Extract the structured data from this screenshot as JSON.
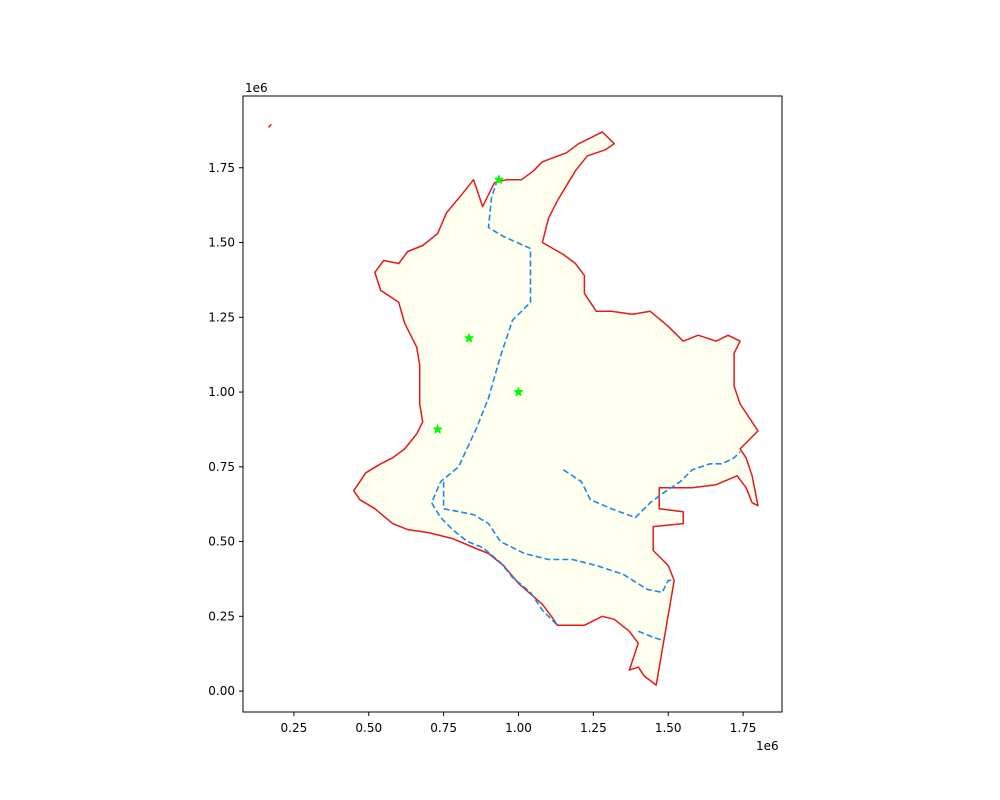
{
  "chart_data": {
    "type": "map",
    "title": "",
    "xlabel": "",
    "ylabel": "",
    "xlim": [
      0.08,
      1.88
    ],
    "ylim": [
      -0.07,
      1.99
    ],
    "x_offset_label": "1e6",
    "y_offset_label": "1e6",
    "x_ticks": [
      {
        "value": 0.25,
        "label": "0.25"
      },
      {
        "value": 0.5,
        "label": "0.50"
      },
      {
        "value": 0.75,
        "label": "0.75"
      },
      {
        "value": 1.0,
        "label": "1.00"
      },
      {
        "value": 1.25,
        "label": "1.25"
      },
      {
        "value": 1.5,
        "label": "1.50"
      },
      {
        "value": 1.75,
        "label": "1.75"
      }
    ],
    "y_ticks": [
      {
        "value": 0.0,
        "label": "0.00"
      },
      {
        "value": 0.25,
        "label": "0.25"
      },
      {
        "value": 0.5,
        "label": "0.50"
      },
      {
        "value": 0.75,
        "label": "0.75"
      },
      {
        "value": 1.0,
        "label": "1.00"
      },
      {
        "value": 1.25,
        "label": "1.25"
      },
      {
        "value": 1.5,
        "label": "1.50"
      },
      {
        "value": 1.75,
        "label": "1.75"
      }
    ],
    "grid": false,
    "colors": {
      "land_fill": "#fffff0",
      "border": "#e31a1c",
      "internal_lines": "#1e88e5",
      "markers": "#00ff00"
    },
    "island": [
      [
        0.165,
        1.885
      ],
      [
        0.175,
        1.895
      ]
    ],
    "outline": [
      [
        0.88,
        1.62
      ],
      [
        0.92,
        1.7
      ],
      [
        0.96,
        1.71
      ],
      [
        1.01,
        1.71
      ],
      [
        1.05,
        1.74
      ],
      [
        1.08,
        1.77
      ],
      [
        1.16,
        1.8
      ],
      [
        1.2,
        1.83
      ],
      [
        1.24,
        1.85
      ],
      [
        1.28,
        1.87
      ],
      [
        1.32,
        1.83
      ],
      [
        1.29,
        1.81
      ],
      [
        1.23,
        1.79
      ],
      [
        1.19,
        1.74
      ],
      [
        1.16,
        1.69
      ],
      [
        1.13,
        1.64
      ],
      [
        1.1,
        1.58
      ],
      [
        1.08,
        1.5
      ],
      [
        1.15,
        1.46
      ],
      [
        1.19,
        1.43
      ],
      [
        1.22,
        1.39
      ],
      [
        1.22,
        1.33
      ],
      [
        1.26,
        1.27
      ],
      [
        1.31,
        1.27
      ],
      [
        1.38,
        1.26
      ],
      [
        1.44,
        1.27
      ],
      [
        1.5,
        1.22
      ],
      [
        1.55,
        1.17
      ],
      [
        1.6,
        1.19
      ],
      [
        1.66,
        1.17
      ],
      [
        1.7,
        1.19
      ],
      [
        1.74,
        1.17
      ],
      [
        1.72,
        1.13
      ],
      [
        1.72,
        1.02
      ],
      [
        1.74,
        0.96
      ],
      [
        1.8,
        0.87
      ],
      [
        1.74,
        0.81
      ],
      [
        1.76,
        0.78
      ],
      [
        1.78,
        0.72
      ],
      [
        1.8,
        0.62
      ],
      [
        1.78,
        0.63
      ],
      [
        1.76,
        0.68
      ],
      [
        1.73,
        0.72
      ],
      [
        1.66,
        0.69
      ],
      [
        1.58,
        0.68
      ],
      [
        1.47,
        0.68
      ],
      [
        1.47,
        0.61
      ],
      [
        1.55,
        0.6
      ],
      [
        1.55,
        0.56
      ],
      [
        1.45,
        0.55
      ],
      [
        1.45,
        0.47
      ],
      [
        1.5,
        0.42
      ],
      [
        1.52,
        0.37
      ],
      [
        1.46,
        0.02
      ],
      [
        1.42,
        0.05
      ],
      [
        1.4,
        0.08
      ],
      [
        1.37,
        0.07
      ],
      [
        1.4,
        0.16
      ],
      [
        1.37,
        0.2
      ],
      [
        1.32,
        0.24
      ],
      [
        1.28,
        0.25
      ],
      [
        1.22,
        0.22
      ],
      [
        1.13,
        0.22
      ],
      [
        1.11,
        0.25
      ],
      [
        1.08,
        0.29
      ],
      [
        1.0,
        0.36
      ],
      [
        0.95,
        0.42
      ],
      [
        0.9,
        0.46
      ],
      [
        0.85,
        0.48
      ],
      [
        0.78,
        0.51
      ],
      [
        0.7,
        0.53
      ],
      [
        0.63,
        0.54
      ],
      [
        0.58,
        0.56
      ],
      [
        0.52,
        0.61
      ],
      [
        0.47,
        0.64
      ],
      [
        0.45,
        0.67
      ],
      [
        0.49,
        0.73
      ],
      [
        0.54,
        0.76
      ],
      [
        0.58,
        0.78
      ],
      [
        0.62,
        0.81
      ],
      [
        0.66,
        0.86
      ],
      [
        0.68,
        0.9
      ],
      [
        0.67,
        0.96
      ],
      [
        0.67,
        1.02
      ],
      [
        0.67,
        1.09
      ],
      [
        0.66,
        1.15
      ],
      [
        0.62,
        1.23
      ],
      [
        0.6,
        1.3
      ],
      [
        0.54,
        1.34
      ],
      [
        0.52,
        1.4
      ],
      [
        0.55,
        1.44
      ],
      [
        0.6,
        1.43
      ],
      [
        0.63,
        1.47
      ],
      [
        0.68,
        1.49
      ],
      [
        0.73,
        1.53
      ],
      [
        0.76,
        1.6
      ],
      [
        0.81,
        1.66
      ],
      [
        0.85,
        1.71
      ],
      [
        0.88,
        1.62
      ]
    ],
    "internal_lines": [
      [
        [
          0.93,
          1.71
        ],
        [
          0.91,
          1.65
        ],
        [
          0.9,
          1.55
        ],
        [
          0.95,
          1.52
        ],
        [
          1.04,
          1.48
        ],
        [
          1.04,
          1.3
        ],
        [
          0.98,
          1.24
        ],
        [
          0.94,
          1.12
        ],
        [
          0.9,
          0.98
        ],
        [
          0.86,
          0.88
        ],
        [
          0.8,
          0.75
        ],
        [
          0.74,
          0.7
        ],
        [
          0.71,
          0.63
        ],
        [
          0.74,
          0.58
        ],
        [
          0.78,
          0.54
        ],
        [
          0.83,
          0.5
        ],
        [
          0.88,
          0.48
        ],
        [
          0.94,
          0.43
        ],
        [
          0.98,
          0.38
        ],
        [
          1.04,
          0.33
        ],
        [
          1.08,
          0.27
        ],
        [
          1.13,
          0.22
        ]
      ],
      [
        [
          0.75,
          0.7
        ],
        [
          0.75,
          0.61
        ],
        [
          0.85,
          0.59
        ],
        [
          0.9,
          0.56
        ],
        [
          0.94,
          0.5
        ],
        [
          1.02,
          0.46
        ],
        [
          1.1,
          0.44
        ],
        [
          1.18,
          0.44
        ],
        [
          1.26,
          0.42
        ],
        [
          1.35,
          0.39
        ],
        [
          1.43,
          0.34
        ],
        [
          1.48,
          0.33
        ],
        [
          1.5,
          0.37
        ],
        [
          1.52,
          0.37
        ]
      ],
      [
        [
          1.15,
          0.74
        ],
        [
          1.21,
          0.7
        ],
        [
          1.24,
          0.64
        ],
        [
          1.31,
          0.61
        ],
        [
          1.39,
          0.58
        ],
        [
          1.44,
          0.63
        ],
        [
          1.48,
          0.66
        ],
        [
          1.54,
          0.7
        ],
        [
          1.58,
          0.74
        ],
        [
          1.64,
          0.76
        ],
        [
          1.68,
          0.76
        ],
        [
          1.72,
          0.78
        ],
        [
          1.74,
          0.8
        ]
      ],
      [
        [
          1.4,
          0.2
        ],
        [
          1.45,
          0.18
        ],
        [
          1.48,
          0.17
        ]
      ]
    ],
    "markers": [
      {
        "x": 0.935,
        "y": 1.71
      },
      {
        "x": 0.835,
        "y": 1.18
      },
      {
        "x": 1.0,
        "y": 1.0
      },
      {
        "x": 0.73,
        "y": 0.875
      }
    ]
  }
}
